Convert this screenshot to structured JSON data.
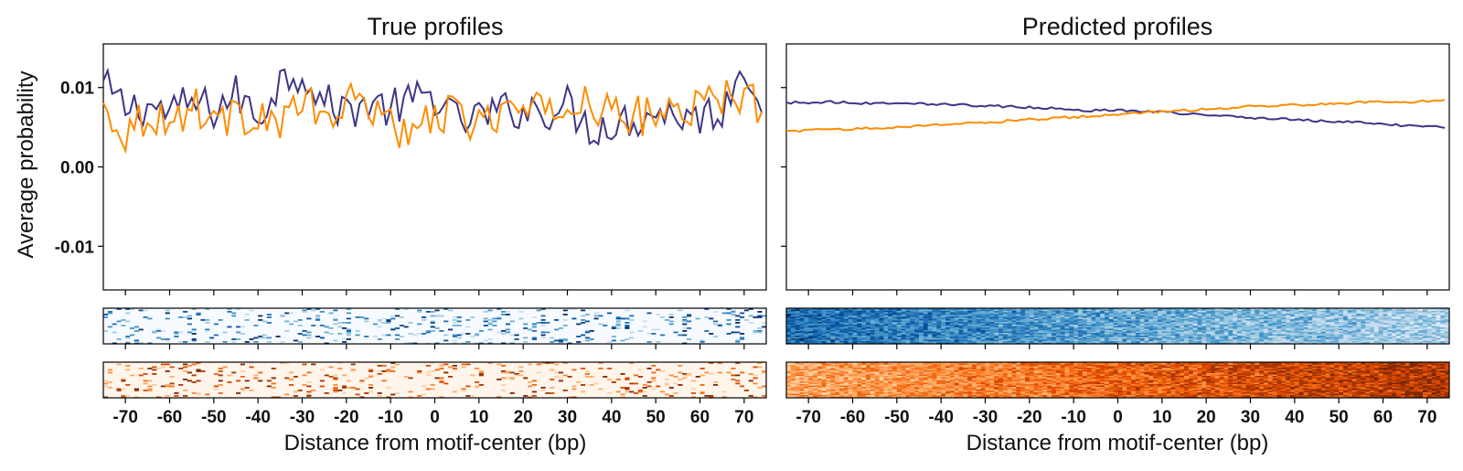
{
  "chart_data": [
    {
      "type": "line",
      "title": "True profiles",
      "xlabel": "Distance from motif-center (bp)",
      "ylabel": "Average probability",
      "xlim": [
        -75,
        75
      ],
      "ylim": [
        -0.0155,
        0.0155
      ],
      "xticks": [
        -70,
        -60,
        -50,
        -40,
        -30,
        -20,
        -10,
        0,
        10,
        20,
        30,
        40,
        50,
        60,
        70
      ],
      "yticks": [
        -0.01,
        0.0,
        0.01
      ],
      "ytick_labels": [
        "-0.01",
        "0.00",
        "0.01"
      ],
      "x_range": [
        -75,
        74
      ],
      "series": [
        {
          "color": "#3d3587",
          "x_step": 5,
          "values": [
            0.0102,
            0.0074,
            0.0078,
            0.0068,
            0.0081,
            0.0072,
            0.0092,
            0.0062,
            0.0109,
            0.0122,
            0.008,
            0.0072,
            0.0081,
            0.0073,
            0.0082,
            0.0091,
            0.0056,
            0.0063,
            0.0069,
            0.0074,
            0.0071,
            0.0078,
            0.0049,
            0.0056,
            0.006,
            0.007,
            0.0066,
            0.0063,
            0.0072,
            0.0132,
            0.0073,
            0.0064,
            0.006
          ]
        },
        {
          "color": "#ff8c00",
          "x_step": 5,
          "values": [
            0.0074,
            0.0044,
            0.0069,
            0.0054,
            0.0078,
            0.0066,
            0.0059,
            0.0071,
            0.0053,
            0.0083,
            0.0058,
            0.0078,
            0.0081,
            0.0061,
            0.003,
            0.0071,
            0.0062,
            0.0054,
            0.0072,
            0.007,
            0.0067,
            0.0076,
            0.0088,
            0.0062,
            0.0067,
            0.0058,
            0.0082,
            0.0073,
            0.0087,
            0.0092,
            0.0068,
            0.0081,
            0.0102
          ]
        }
      ]
    },
    {
      "type": "line",
      "title": "Predicted profiles",
      "xlabel": "Distance from motif-center (bp)",
      "ylabel": "",
      "xlim": [
        -75,
        75
      ],
      "ylim": [
        -0.0155,
        0.0155
      ],
      "xticks": [
        -70,
        -60,
        -50,
        -40,
        -30,
        -20,
        -10,
        0,
        10,
        20,
        30,
        40,
        50,
        60,
        70
      ],
      "yticks": [
        -0.01,
        0.0,
        0.01
      ],
      "x_range": [
        -75,
        74
      ],
      "series": [
        {
          "color": "#3d3587",
          "x_step": 5,
          "values": [
            0.0081,
            0.0081,
            0.0082,
            0.0081,
            0.008,
            0.0081,
            0.008,
            0.0079,
            0.0078,
            0.0077,
            0.0076,
            0.0075,
            0.0074,
            0.0072,
            0.0071,
            0.0072,
            0.007,
            0.0069,
            0.0067,
            0.0066,
            0.0064,
            0.0062,
            0.0061,
            0.006,
            0.0058,
            0.0057,
            0.0056,
            0.0054,
            0.0052,
            0.0051,
            0.0049,
            0.0048,
            0.0047
          ]
        },
        {
          "color": "#ff8c00",
          "x_step": 5,
          "values": [
            0.0045,
            0.0046,
            0.0047,
            0.0048,
            0.0049,
            0.005,
            0.0052,
            0.0053,
            0.0055,
            0.0056,
            0.0058,
            0.006,
            0.0061,
            0.0063,
            0.0064,
            0.0066,
            0.0068,
            0.0069,
            0.0071,
            0.0073,
            0.0074,
            0.0076,
            0.0077,
            0.0078,
            0.0079,
            0.008,
            0.0081,
            0.0082,
            0.0082,
            0.0083,
            0.0084,
            0.0085,
            0.0086
          ]
        }
      ]
    },
    {
      "type": "heatmap",
      "panel": "true-strand-1",
      "colormap": "Blues",
      "pattern": "sparse",
      "x_range": [
        -75,
        74
      ]
    },
    {
      "type": "heatmap",
      "panel": "predicted-strand-1",
      "colormap": "Blues",
      "pattern": "dense-decreasing",
      "x_range": [
        -75,
        74
      ]
    },
    {
      "type": "heatmap",
      "panel": "true-strand-2",
      "colormap": "Oranges",
      "pattern": "sparse",
      "x_range": [
        -75,
        74
      ]
    },
    {
      "type": "heatmap",
      "panel": "predicted-strand-2",
      "colormap": "Oranges",
      "pattern": "dense-increasing",
      "x_range": [
        -75,
        74
      ]
    }
  ]
}
